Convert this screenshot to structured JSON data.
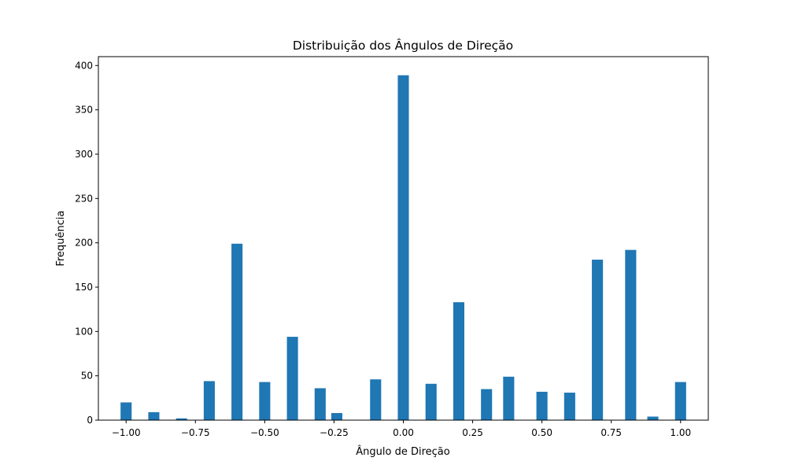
{
  "chart_data": {
    "type": "bar",
    "title": "Distribuição dos Ângulos de Direção",
    "xlabel": "Ângulo de Direção",
    "ylabel": "Frequência",
    "xlim": [
      -1.1,
      1.1
    ],
    "ylim": [
      0,
      410
    ],
    "xticks": [
      -1.0,
      -0.75,
      -0.5,
      -0.25,
      0.0,
      0.25,
      0.5,
      0.75,
      1.0
    ],
    "xtick_labels": [
      "−1.00",
      "−0.75",
      "−0.50",
      "−0.25",
      "0.00",
      "0.25",
      "0.50",
      "0.75",
      "1.00"
    ],
    "yticks": [
      0,
      50,
      100,
      150,
      200,
      250,
      300,
      350,
      400
    ],
    "ytick_labels": [
      "0",
      "50",
      "100",
      "150",
      "200",
      "250",
      "300",
      "350",
      "400"
    ],
    "bin_width": 0.04,
    "grid": false,
    "color": "#1f77b4",
    "bars": [
      {
        "x": -1.0,
        "value": 20
      },
      {
        "x": -0.9,
        "value": 9
      },
      {
        "x": -0.8,
        "value": 2
      },
      {
        "x": -0.7,
        "value": 44
      },
      {
        "x": -0.6,
        "value": 199
      },
      {
        "x": -0.5,
        "value": 43
      },
      {
        "x": -0.4,
        "value": 94
      },
      {
        "x": -0.3,
        "value": 36
      },
      {
        "x": -0.24,
        "value": 8
      },
      {
        "x": -0.1,
        "value": 46
      },
      {
        "x": 0.0,
        "value": 389
      },
      {
        "x": 0.1,
        "value": 41
      },
      {
        "x": 0.2,
        "value": 133
      },
      {
        "x": 0.3,
        "value": 35
      },
      {
        "x": 0.38,
        "value": 49
      },
      {
        "x": 0.5,
        "value": 32
      },
      {
        "x": 0.6,
        "value": 31
      },
      {
        "x": 0.7,
        "value": 181
      },
      {
        "x": 0.82,
        "value": 192
      },
      {
        "x": 0.9,
        "value": 4
      },
      {
        "x": 1.0,
        "value": 43
      }
    ]
  }
}
